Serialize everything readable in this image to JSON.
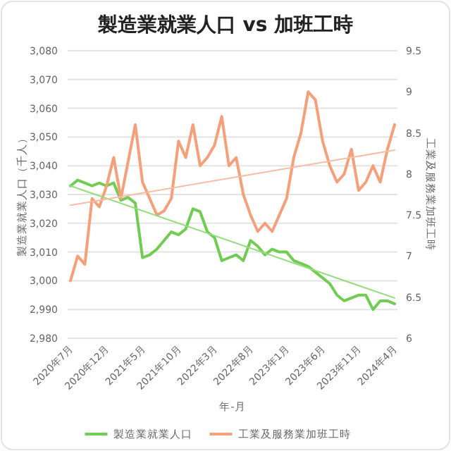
{
  "chart_data": {
    "type": "line",
    "title": "製造業就業人口 vs 加班工時",
    "xlabel": "年-月",
    "ylabel": "製造業就業人口（千人）",
    "y2label": "工業及服務業加班工時",
    "categories": [
      "2020年7月",
      null,
      null,
      null,
      null,
      "2020年12月",
      null,
      null,
      null,
      null,
      "2021年5月",
      null,
      null,
      null,
      null,
      "2021年10月",
      null,
      null,
      null,
      null,
      "2022年3月",
      null,
      null,
      null,
      null,
      "2022年8月",
      null,
      null,
      null,
      null,
      "2023年1月",
      null,
      null,
      null,
      null,
      "2023年6月",
      null,
      null,
      null,
      null,
      "2023年11月",
      null,
      null,
      null,
      null,
      "2024年4月"
    ],
    "series": [
      {
        "name": "製造業就業人口",
        "color": "#70cc52",
        "values": [
          3033,
          3035,
          3034,
          3033,
          3034,
          3033,
          3034,
          3028,
          3029,
          3027,
          3008,
          3009,
          3011,
          3014,
          3017,
          3016,
          3018,
          3025,
          3024,
          3017,
          3015,
          3007,
          3008,
          3009,
          3007,
          3014,
          3012,
          3009,
          3011,
          3010,
          3010,
          3007,
          3006,
          3005,
          3003,
          3001,
          2999,
          2995,
          2993,
          2994,
          2995,
          2995,
          2990,
          2993,
          2993,
          2992
        ]
      },
      {
        "name": "工業及服務業加班工時",
        "color": "#f4a07a",
        "axis": "y2",
        "values": [
          6.7,
          7.0,
          6.9,
          7.7,
          7.6,
          7.85,
          8.2,
          7.7,
          8.15,
          8.6,
          7.9,
          7.7,
          7.5,
          7.55,
          7.7,
          8.4,
          8.2,
          8.6,
          8.1,
          8.2,
          8.35,
          8.7,
          8.1,
          8.2,
          7.75,
          7.5,
          7.3,
          7.4,
          7.3,
          7.5,
          7.7,
          8.2,
          8.5,
          9.0,
          8.9,
          8.4,
          8.1,
          7.9,
          8.0,
          8.3,
          7.8,
          7.9,
          8.1,
          7.9,
          8.3,
          8.6
        ]
      },
      {
        "type": "line",
        "color": "#93dd7e",
        "x": [
          "2020年7月",
          "2024年4月"
        ],
        "values": [
          3033,
          2994
        ]
      },
      {
        "type": "line",
        "color": "#f6bca4",
        "axis": "y2",
        "x": [
          "2020年7月",
          "2024年4月"
        ],
        "values": [
          7.62,
          8.29
        ]
      }
    ],
    "ylim": [
      2980,
      3080
    ],
    "yticks": [
      {
        "value": 2980,
        "label": "2,980"
      },
      {
        "value": 2990,
        "label": "2,990"
      },
      {
        "value": 3000,
        "label": "3,000"
      },
      {
        "value": 3010,
        "label": "3,010"
      },
      {
        "value": 3020,
        "label": "3,020"
      },
      {
        "value": 3030,
        "label": "3,030"
      },
      {
        "value": 3040,
        "label": "3,040"
      },
      {
        "value": 3050,
        "label": "3,050"
      },
      {
        "value": 3060,
        "label": "3,060"
      },
      {
        "value": 3070,
        "label": "3,070"
      },
      {
        "value": 3080,
        "label": "3,080"
      }
    ],
    "y2lim": [
      6,
      9.5
    ],
    "y2ticks": [
      6,
      6.5,
      7,
      7.5,
      8,
      8.5,
      9,
      9.5
    ],
    "grid": "y",
    "legend": "bottom",
    "marker": "none",
    "line_style": "solid"
  }
}
